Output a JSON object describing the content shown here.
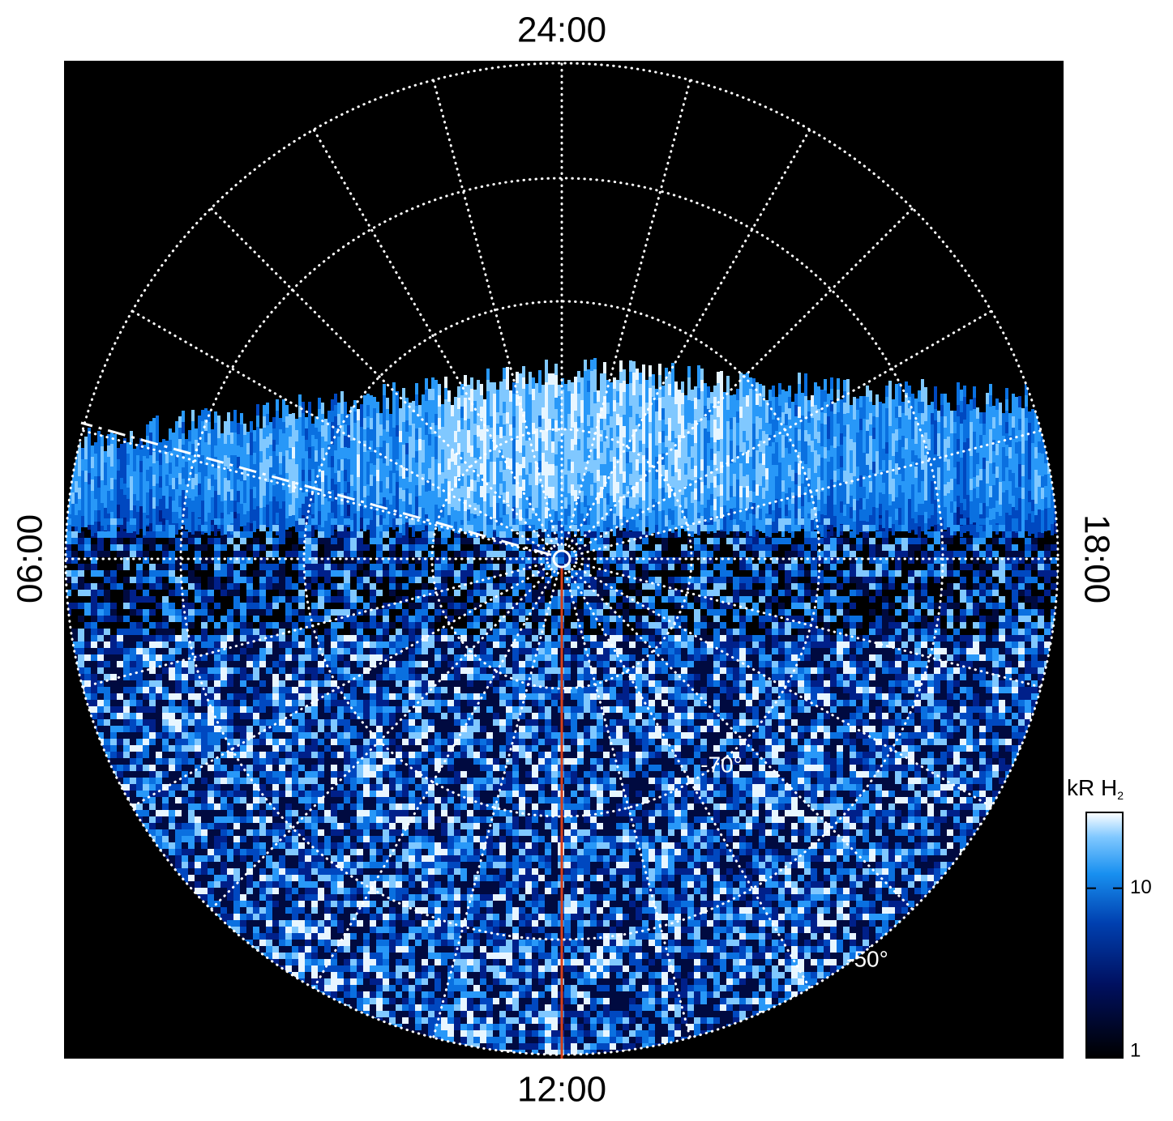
{
  "chart_data": {
    "type": "polar-map",
    "local_time_labels": {
      "top": "24:00",
      "left": "06:00",
      "bottom": "12:00",
      "right": "18:00"
    },
    "latitude_labels": [
      "-70°",
      "-50°"
    ],
    "colorbar": {
      "label": "kR H",
      "label_subscript": "2",
      "log": true,
      "lim": [
        1,
        28
      ],
      "ticks": [
        1,
        10
      ]
    }
  }
}
